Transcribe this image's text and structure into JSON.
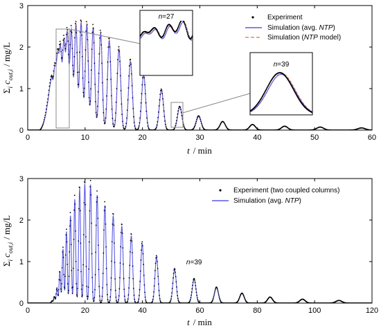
{
  "chart_data": [
    {
      "type": "line",
      "title": "",
      "xlabel": {
        "var": "t",
        "unit": "min"
      },
      "ylabel": {
        "prefix": "Σ",
        "sub1": "i",
        "var": "c",
        "sub2": "out,i",
        "unit": "mg/L"
      },
      "xlim": [
        0,
        60
      ],
      "ylim": [
        0,
        3
      ],
      "x_ticks": [
        "0",
        "10",
        "20",
        "30",
        "40",
        "50",
        "60"
      ],
      "y_ticks": [
        "0",
        "1",
        "2",
        "3"
      ],
      "legend_position": "top-right",
      "series": [
        {
          "name": "Experiment",
          "style": "dots",
          "color": "#000000"
        },
        {
          "name": "Simulation (avg. NTP)",
          "name_plain": "Simulation (avg. ",
          "name_italic": "NTP",
          "name_end": ")",
          "style": "solid",
          "color": "#5a5ae6"
        },
        {
          "name": "Simulation (NTP model)",
          "name_plain": "Simulation (",
          "name_italic": "NTP",
          "name_end": " model)",
          "style": "dashed",
          "color": "#e38a5c"
        }
      ],
      "peaks": [
        {
          "t": 2.6,
          "c": 0.07
        },
        {
          "t": 3.0,
          "c": 0.22
        },
        {
          "t": 3.4,
          "c": 0.45
        },
        {
          "t": 3.8,
          "c": 0.75
        },
        {
          "t": 4.2,
          "c": 1.05
        },
        {
          "t": 4.7,
          "c": 1.35
        },
        {
          "t": 5.2,
          "c": 1.62
        },
        {
          "t": 5.7,
          "c": 1.85
        },
        {
          "t": 6.3,
          "c": 2.05
        },
        {
          "t": 6.9,
          "c": 2.28
        },
        {
          "t": 7.6,
          "c": 2.38
        },
        {
          "t": 8.4,
          "c": 2.52
        },
        {
          "t": 9.3,
          "c": 2.57
        },
        {
          "t": 10.3,
          "c": 2.52
        },
        {
          "t": 11.4,
          "c": 2.45
        },
        {
          "t": 12.7,
          "c": 2.32
        },
        {
          "t": 14.2,
          "c": 2.15
        },
        {
          "t": 15.9,
          "c": 1.93
        },
        {
          "t": 17.9,
          "c": 1.65
        },
        {
          "t": 20.2,
          "c": 1.32
        },
        {
          "t": 23.3,
          "c": 0.95
        },
        {
          "t": 26.5,
          "c": 0.55
        },
        {
          "t": 29.8,
          "c": 0.33
        },
        {
          "t": 34.0,
          "c": 0.2
        },
        {
          "t": 39.2,
          "c": 0.13
        },
        {
          "t": 44.8,
          "c": 0.09
        },
        {
          "t": 51.0,
          "c": 0.07
        },
        {
          "t": 58.2,
          "c": 0.05
        }
      ],
      "insets": [
        {
          "label_var": "n",
          "label_value": "27",
          "window": {
            "x": [
              5.0,
              7.3
            ],
            "y": [
              0,
              2.45
            ]
          }
        },
        {
          "label_var": "n",
          "label_value": "39",
          "window": {
            "x": [
              25.6,
              27.4
            ],
            "y": [
              0,
              0.62
            ]
          }
        }
      ]
    },
    {
      "type": "line",
      "title": "",
      "xlabel": {
        "var": "t",
        "unit": "min"
      },
      "ylabel": {
        "prefix": "Σ",
        "sub1": "i",
        "var": "c",
        "sub2": "out,i",
        "unit": "mg/L"
      },
      "xlim": [
        0,
        120
      ],
      "ylim": [
        0,
        3
      ],
      "x_ticks": [
        "0",
        "20",
        "40",
        "60",
        "80",
        "100",
        "120"
      ],
      "y_ticks": [
        "0",
        "1",
        "2",
        "3"
      ],
      "legend_position": "top-right",
      "series": [
        {
          "name": "Experiment (two coupled columns)",
          "style": "dots",
          "color": "#000000"
        },
        {
          "name": "Simulation (avg. NTP)",
          "name_plain": "Simulation (avg. ",
          "name_italic": "NTP",
          "name_end": ")",
          "style": "solid",
          "color": "#5a5ae6"
        }
      ],
      "annotation": {
        "var": "n",
        "value": "39",
        "t": 58.0,
        "c": 0.8
      },
      "peaks": [
        {
          "t": 8.5,
          "c": 0.05
        },
        {
          "t": 9.3,
          "c": 0.15
        },
        {
          "t": 10.2,
          "c": 0.35
        },
        {
          "t": 11.2,
          "c": 0.75
        },
        {
          "t": 12.3,
          "c": 1.3
        },
        {
          "t": 13.5,
          "c": 1.72
        },
        {
          "t": 14.9,
          "c": 2.1
        },
        {
          "t": 16.4,
          "c": 2.5
        },
        {
          "t": 18.1,
          "c": 2.75
        },
        {
          "t": 19.9,
          "c": 2.87
        },
        {
          "t": 21.9,
          "c": 2.85
        },
        {
          "t": 24.2,
          "c": 2.6
        },
        {
          "t": 26.9,
          "c": 2.35
        },
        {
          "t": 29.8,
          "c": 2.1
        },
        {
          "t": 32.8,
          "c": 1.85
        },
        {
          "t": 36.1,
          "c": 1.62
        },
        {
          "t": 39.9,
          "c": 1.42
        },
        {
          "t": 44.9,
          "c": 1.1
        },
        {
          "t": 51.2,
          "c": 0.8
        },
        {
          "t": 58.0,
          "c": 0.57
        },
        {
          "t": 65.8,
          "c": 0.37
        },
        {
          "t": 74.7,
          "c": 0.23
        },
        {
          "t": 84.5,
          "c": 0.14
        },
        {
          "t": 95.8,
          "c": 0.09
        },
        {
          "t": 108.5,
          "c": 0.06
        }
      ]
    }
  ]
}
